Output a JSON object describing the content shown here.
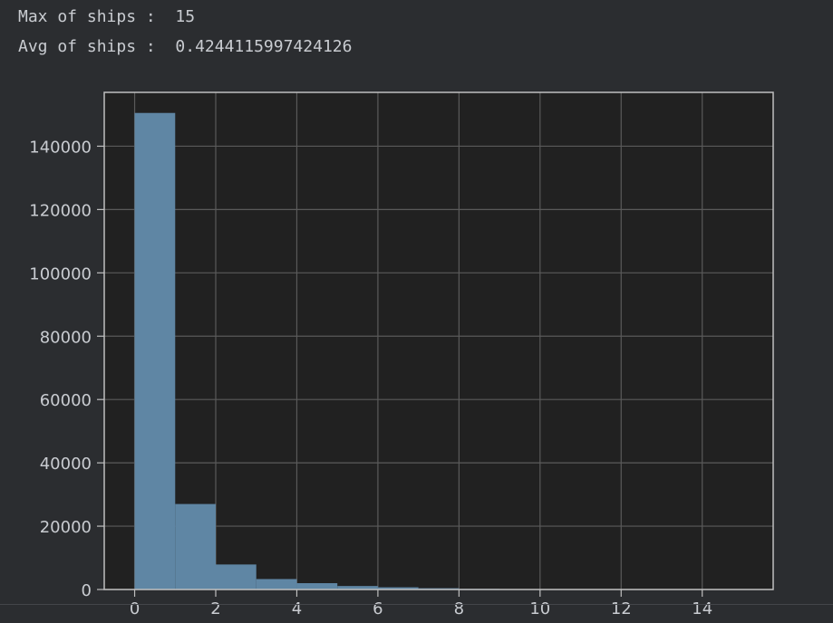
{
  "output": {
    "max_line": "Max of ships :  15",
    "avg_line": "Avg of ships :  0.4244115997424126"
  },
  "colors": {
    "background": "#2b2d30",
    "plot_background": "#212121",
    "bar": "#5f86a4",
    "grid": "#5a5a5a",
    "axis": "#bfbfbf",
    "text": "#c9ccd1"
  },
  "chart_data": {
    "type": "bar",
    "title": "",
    "xlabel": "",
    "ylabel": "",
    "grid": true,
    "xlim": [
      -0.75,
      15.75
    ],
    "ylim": [
      0,
      157000
    ],
    "x_ticks": [
      0,
      2,
      4,
      6,
      8,
      10,
      12,
      14
    ],
    "y_ticks": [
      0,
      20000,
      40000,
      60000,
      80000,
      100000,
      120000,
      140000
    ],
    "bins": [
      {
        "start": 0,
        "end": 1,
        "count": 150500
      },
      {
        "start": 1,
        "end": 2,
        "count": 27000
      },
      {
        "start": 2,
        "end": 3,
        "count": 7900
      },
      {
        "start": 3,
        "end": 4,
        "count": 3300
      },
      {
        "start": 4,
        "end": 5,
        "count": 2000
      },
      {
        "start": 5,
        "end": 6,
        "count": 1100
      },
      {
        "start": 6,
        "end": 7,
        "count": 700
      },
      {
        "start": 7,
        "end": 8,
        "count": 400
      },
      {
        "start": 8,
        "end": 9,
        "count": 200
      },
      {
        "start": 9,
        "end": 10,
        "count": 120
      },
      {
        "start": 10,
        "end": 11,
        "count": 70
      },
      {
        "start": 11,
        "end": 12,
        "count": 40
      },
      {
        "start": 12,
        "end": 13,
        "count": 20
      },
      {
        "start": 13,
        "end": 14,
        "count": 10
      },
      {
        "start": 14,
        "end": 15,
        "count": 5
      }
    ]
  }
}
